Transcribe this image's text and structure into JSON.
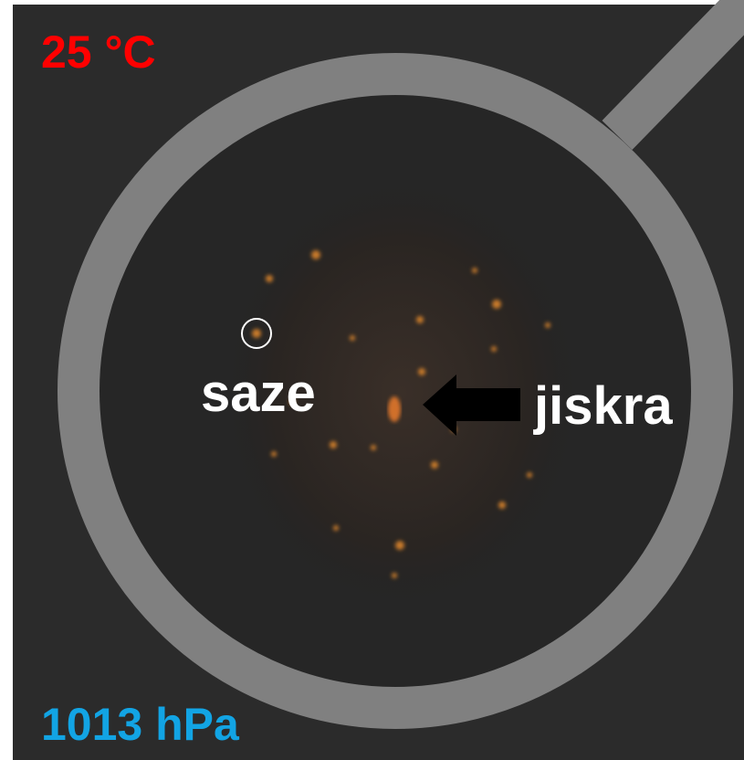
{
  "temperature": "25 °C",
  "pressure": "1013 hPa",
  "labels": {
    "droplet": "saze",
    "spark": "jiskra"
  }
}
